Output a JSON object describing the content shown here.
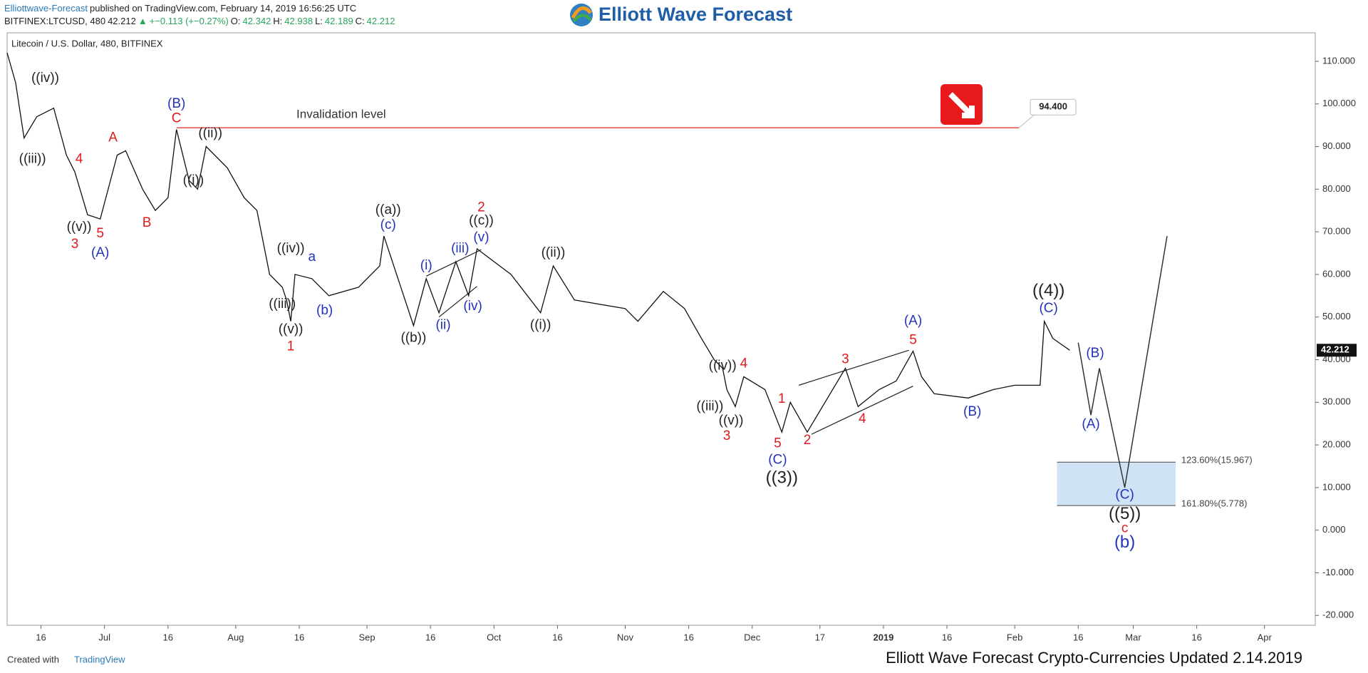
{
  "header": {
    "line1": [
      {
        "text": "Elliottwave-Forecast",
        "color": "#2a7ab8"
      },
      {
        "text": "published on TradingView.com, February 14, 2019 16:56:25 UTC",
        "color": "#222"
      }
    ],
    "line2": [
      {
        "text": "BITFINEX:LTCUSD, 480",
        "color": "#222"
      },
      {
        "text": "42.212",
        "color": "#222"
      },
      {
        "text": "▲",
        "color": "#26a65b"
      },
      {
        "text": "+−0.113 (+−0.27%)",
        "color": "#26a65b"
      },
      {
        "text": "O:",
        "color": "#222"
      },
      {
        "text": "42.342",
        "color": "#26a65b"
      },
      {
        "text": "H:",
        "color": "#222"
      },
      {
        "text": "42.938",
        "color": "#26a65b"
      },
      {
        "text": "L:",
        "color": "#222"
      },
      {
        "text": "42.189",
        "color": "#26a65b"
      },
      {
        "text": "C:",
        "color": "#222"
      },
      {
        "text": "42.212",
        "color": "#26a65b"
      }
    ],
    "logo": "Elliott Wave Forecast"
  },
  "footer": {
    "created": "Created with",
    "brand": "TradingView",
    "updated": "Elliott Wave Forecast Crypto-Currencies Updated 2.14.2019"
  },
  "chart_data": {
    "type": "line",
    "title": "Litecoin / U.S. Dollar, 480, BITFINEX",
    "x": [
      "2018-06-08",
      "2018-06-10",
      "2018-06-12",
      "2018-06-15",
      "2018-06-19",
      "2018-06-22",
      "2018-06-24",
      "2018-06-27",
      "2018-06-30",
      "2018-07-04",
      "2018-07-06",
      "2018-07-10",
      "2018-07-13",
      "2018-07-16",
      "2018-07-18",
      "2018-07-21",
      "2018-07-23",
      "2018-07-25",
      "2018-07-30",
      "2018-08-03",
      "2018-08-06",
      "2018-08-09",
      "2018-08-12",
      "2018-08-13",
      "2018-08-14",
      "2018-08-15",
      "2018-08-19",
      "2018-08-23",
      "2018-08-30",
      "2018-09-04",
      "2018-09-05",
      "2018-09-09",
      "2018-09-12",
      "2018-09-15",
      "2018-09-18",
      "2018-09-22",
      "2018-09-25",
      "2018-09-27",
      "2018-10-05",
      "2018-10-12",
      "2018-10-15",
      "2018-10-20",
      "2018-11-01",
      "2018-11-04",
      "2018-11-10",
      "2018-11-15",
      "2018-11-19",
      "2018-11-22",
      "2018-11-24",
      "2018-11-25",
      "2018-11-27",
      "2018-11-29",
      "2018-12-04",
      "2018-12-08",
      "2018-12-10",
      "2018-12-14",
      "2018-12-20",
      "2018-12-23",
      "2018-12-26",
      "2018-12-31",
      "2019-01-04",
      "2019-01-08",
      "2019-01-10",
      "2019-01-13",
      "2019-01-21",
      "2019-01-27",
      "2019-02-01",
      "2019-02-07",
      "2019-02-08",
      "2019-02-10",
      "2019-02-14"
    ],
    "series": [
      {
        "name": "LTCUSD",
        "color": "#111111",
        "values": [
          112,
          105,
          92,
          97,
          99,
          88,
          84,
          74,
          73,
          88,
          89,
          80,
          75,
          78,
          94,
          82,
          80,
          90,
          85,
          78,
          75,
          60,
          57,
          54,
          49,
          60,
          59,
          55,
          57,
          62,
          69,
          57,
          48,
          59,
          51,
          63,
          55,
          66,
          60,
          51,
          62,
          54,
          52,
          49,
          56,
          52,
          45,
          40,
          38,
          33,
          29,
          36,
          33,
          23,
          30,
          23,
          33,
          38,
          29,
          33,
          35,
          42,
          36,
          32,
          31,
          33,
          34,
          34,
          49,
          45,
          42.212
        ]
      },
      {
        "name": "Projection",
        "color": "#333333",
        "x": [
          "2019-02-16",
          "2019-02-19",
          "2019-02-21",
          "2019-02-27",
          "2019-03-09"
        ],
        "values": [
          44,
          27,
          38,
          10,
          69
        ]
      }
    ],
    "last_price": {
      "value": 42.212,
      "label": "42.212"
    },
    "invalidation": {
      "label": "Invalidation level",
      "value": 94.4,
      "value_label": "94.400",
      "x": [
        "2018-07-18",
        "2019-02-02"
      ]
    },
    "fib_zone": {
      "x": [
        "2019-02-11",
        "2019-03-11"
      ],
      "levels": [
        {
          "value": 15.967,
          "label": "123.60%(15.967)"
        },
        {
          "value": 5.778,
          "label": "161.80%(5.778)"
        }
      ]
    },
    "trendlines": [
      {
        "x": [
          "2018-09-15",
          "2018-09-28"
        ],
        "y": [
          59.6,
          65.8
        ]
      },
      {
        "x": [
          "2018-09-18",
          "2018-09-27"
        ],
        "y": [
          50,
          57.2
        ]
      },
      {
        "x": [
          "2018-12-12",
          "2019-01-07"
        ],
        "y": [
          34,
          42.2
        ]
      },
      {
        "x": [
          "2018-12-15",
          "2019-01-08"
        ],
        "y": [
          22.5,
          33.8
        ]
      }
    ],
    "annotations": [
      {
        "text": "((iv))",
        "x": "2018-06-17",
        "y": 106,
        "color": "#222"
      },
      {
        "text": "((iii))",
        "x": "2018-06-14",
        "y": 87,
        "color": "#222"
      },
      {
        "text": "4",
        "x": "2018-06-25",
        "y": 87,
        "color": "#e3191b"
      },
      {
        "text": "((v))",
        "x": "2018-06-25",
        "y": 71,
        "color": "#222"
      },
      {
        "text": "5",
        "x": "2018-06-30",
        "y": 69.5,
        "color": "#e3191b"
      },
      {
        "text": "3",
        "x": "2018-06-24",
        "y": 67,
        "color": "#e3191b"
      },
      {
        "text": "(A)",
        "x": "2018-06-30",
        "y": 65,
        "color": "#2233bb"
      },
      {
        "text": "A",
        "x": "2018-07-03",
        "y": 92,
        "color": "#e3191b"
      },
      {
        "text": "B",
        "x": "2018-07-11",
        "y": 72,
        "color": "#e3191b"
      },
      {
        "text": "(B)",
        "x": "2018-07-18",
        "y": 100,
        "color": "#2233bb"
      },
      {
        "text": "C",
        "x": "2018-07-18",
        "y": 96.5,
        "color": "#e3191b"
      },
      {
        "text": "((ii))",
        "x": "2018-07-26",
        "y": 93,
        "color": "#222"
      },
      {
        "text": "((i))",
        "x": "2018-07-22",
        "y": 82,
        "color": "#222"
      },
      {
        "text": "((iv))",
        "x": "2018-08-14",
        "y": 66,
        "color": "#222"
      },
      {
        "text": "a",
        "x": "2018-08-19",
        "y": 64,
        "color": "#2233bb"
      },
      {
        "text": "((iii))",
        "x": "2018-08-12",
        "y": 53,
        "color": "#222"
      },
      {
        "text": "(b)",
        "x": "2018-08-22",
        "y": 51.5,
        "color": "#2233bb"
      },
      {
        "text": "((v))",
        "x": "2018-08-14",
        "y": 47,
        "color": "#222"
      },
      {
        "text": "1",
        "x": "2018-08-14",
        "y": 43,
        "color": "#e3191b"
      },
      {
        "text": "((a))",
        "x": "2018-09-06",
        "y": 75,
        "color": "#222"
      },
      {
        "text": "(c)",
        "x": "2018-09-06",
        "y": 71.5,
        "color": "#2233bb"
      },
      {
        "text": "((b))",
        "x": "2018-09-12",
        "y": 45,
        "color": "#222"
      },
      {
        "text": "(i)",
        "x": "2018-09-15",
        "y": 62,
        "color": "#2233bb"
      },
      {
        "text": "(ii)",
        "x": "2018-09-19",
        "y": 48,
        "color": "#2233bb"
      },
      {
        "text": "(iii)",
        "x": "2018-09-23",
        "y": 66,
        "color": "#2233bb"
      },
      {
        "text": "(iv)",
        "x": "2018-09-26",
        "y": 52.5,
        "color": "#2233bb"
      },
      {
        "text": "(v)",
        "x": "2018-09-28",
        "y": 68.6,
        "color": "#2233bb"
      },
      {
        "text": "((c))",
        "x": "2018-09-28",
        "y": 72.5,
        "color": "#222"
      },
      {
        "text": "2",
        "x": "2018-09-28",
        "y": 75.6,
        "color": "#e3191b"
      },
      {
        "text": "((ii))",
        "x": "2018-10-15",
        "y": 65,
        "color": "#222"
      },
      {
        "text": "((i))",
        "x": "2018-10-12",
        "y": 48,
        "color": "#222"
      },
      {
        "text": "((iv))",
        "x": "2018-11-24",
        "y": 38.5,
        "color": "#222"
      },
      {
        "text": "4",
        "x": "2018-11-29",
        "y": 39,
        "color": "#e3191b"
      },
      {
        "text": "((iii))",
        "x": "2018-11-21",
        "y": 29,
        "color": "#222"
      },
      {
        "text": "((v))",
        "x": "2018-11-26",
        "y": 25.6,
        "color": "#222"
      },
      {
        "text": "3",
        "x": "2018-11-25",
        "y": 22,
        "color": "#e3191b"
      },
      {
        "text": "1",
        "x": "2018-12-08",
        "y": 30.7,
        "color": "#e3191b"
      },
      {
        "text": "5",
        "x": "2018-12-07",
        "y": 20.3,
        "color": "#e3191b"
      },
      {
        "text": "(C)",
        "x": "2018-12-07",
        "y": 16.4,
        "color": "#2233bb"
      },
      {
        "text": "((3))",
        "x": "2018-12-08",
        "y": 12.1,
        "color": "#222",
        "big": true
      },
      {
        "text": "2",
        "x": "2018-12-14",
        "y": 21,
        "color": "#e3191b"
      },
      {
        "text": "3",
        "x": "2018-12-23",
        "y": 40,
        "color": "#e3191b"
      },
      {
        "text": "4",
        "x": "2018-12-27",
        "y": 26,
        "color": "#e3191b"
      },
      {
        "text": "(A)",
        "x": "2019-01-08",
        "y": 49,
        "color": "#2233bb"
      },
      {
        "text": "5",
        "x": "2019-01-08",
        "y": 44.5,
        "color": "#e3191b"
      },
      {
        "text": "(B)",
        "x": "2019-01-22",
        "y": 27.7,
        "color": "#2233bb"
      },
      {
        "text": "((4))",
        "x": "2019-02-09",
        "y": 56,
        "color": "#222",
        "big": true
      },
      {
        "text": "(C)",
        "x": "2019-02-09",
        "y": 52,
        "color": "#2233bb"
      },
      {
        "text": "(B)",
        "x": "2019-02-20",
        "y": 41.4,
        "color": "#2233bb"
      },
      {
        "text": "(A)",
        "x": "2019-02-19",
        "y": 24.8,
        "color": "#2233bb"
      },
      {
        "text": "(C)",
        "x": "2019-02-27",
        "y": 8.2,
        "color": "#2233bb"
      },
      {
        "text": "((5))",
        "x": "2019-02-27",
        "y": 3.7,
        "color": "#222",
        "big": true
      },
      {
        "text": "c",
        "x": "2019-02-27",
        "y": 0.4,
        "color": "#e3191b"
      },
      {
        "text": "(b)",
        "x": "2019-02-27",
        "y": -3,
        "color": "#2233bb",
        "big": true
      }
    ],
    "xlim": [
      "2018-06-08",
      "2019-04-13"
    ],
    "xticks": [
      {
        "value": "2018-06-16",
        "label": "16"
      },
      {
        "value": "2018-07-01",
        "label": "Jul"
      },
      {
        "value": "2018-07-16",
        "label": "16"
      },
      {
        "value": "2018-08-01",
        "label": "Aug"
      },
      {
        "value": "2018-08-16",
        "label": "16"
      },
      {
        "value": "2018-09-01",
        "label": "Sep"
      },
      {
        "value": "2018-09-16",
        "label": "16"
      },
      {
        "value": "2018-10-01",
        "label": "Oct"
      },
      {
        "value": "2018-10-16",
        "label": "16"
      },
      {
        "value": "2018-11-01",
        "label": "Nov"
      },
      {
        "value": "2018-11-16",
        "label": "16"
      },
      {
        "value": "2018-12-01",
        "label": "Dec"
      },
      {
        "value": "2018-12-17",
        "label": "17"
      },
      {
        "value": "2019-01-01",
        "label": "2019"
      },
      {
        "value": "2019-01-16",
        "label": "16"
      },
      {
        "value": "2019-02-01",
        "label": "Feb"
      },
      {
        "value": "2019-02-16",
        "label": "16"
      },
      {
        "value": "2019-03-01",
        "label": "Mar"
      },
      {
        "value": "2019-03-16",
        "label": "16"
      },
      {
        "value": "2019-04-01",
        "label": "Apr"
      }
    ],
    "ylim": [
      -22.3,
      116.6
    ],
    "yticks": [
      {
        "value": 110,
        "label": "110.000"
      },
      {
        "value": 100,
        "label": "100.000"
      },
      {
        "value": 90,
        "label": "90.000"
      },
      {
        "value": 80,
        "label": "80.000"
      },
      {
        "value": 70,
        "label": "70.000"
      },
      {
        "value": 60,
        "label": "60.000"
      },
      {
        "value": 50,
        "label": "50.000"
      },
      {
        "value": 40,
        "label": "40.000"
      },
      {
        "value": 30,
        "label": "30.000"
      },
      {
        "value": 20,
        "label": "20.000"
      },
      {
        "value": 10,
        "label": "10.000"
      },
      {
        "value": 0,
        "label": "0.000"
      },
      {
        "value": -10,
        "label": "-10.000"
      },
      {
        "value": -20,
        "label": "-20.000"
      }
    ],
    "grid": false,
    "invalidation_color": "#e84a4a",
    "fib_color": "#cfe3f5"
  }
}
